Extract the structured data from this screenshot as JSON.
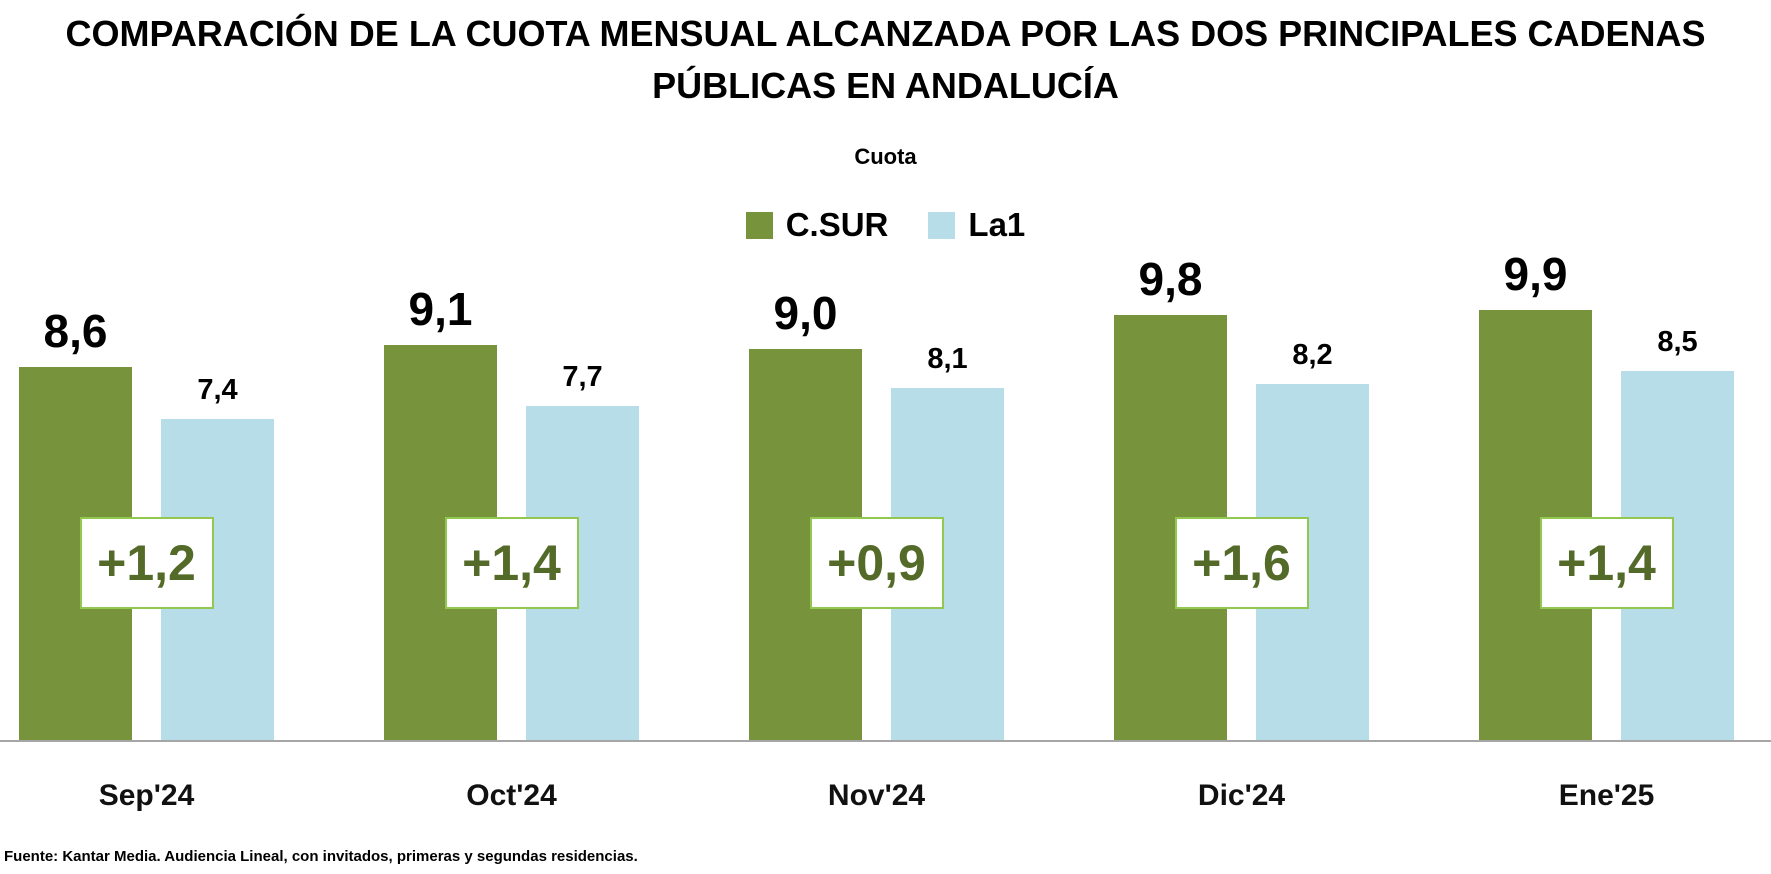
{
  "title": {
    "lines": [
      "COMPARACIÓN DE LA CUOTA MENSUAL ALCANZADA POR LAS DOS PRINCIPALES CADENAS",
      "PÚBLICAS EN ANDALUCÍA"
    ]
  },
  "legend": {
    "title": "Cuota",
    "series": [
      {
        "name": "C.SUR",
        "color": "#77933C"
      },
      {
        "name": "La1",
        "color": "#B7DEE8"
      }
    ]
  },
  "footer": {
    "source": "Fuente: Kantar Media. Audiencia Lineal, con invitados, primeras y segundas residencias."
  },
  "colors": {
    "axis_line": "#A6A6A6"
  },
  "chart_data": {
    "type": "bar",
    "title": "Cuota",
    "categories": [
      "Sep'24",
      "Oct'24",
      "Nov'24",
      "Dic'24",
      "Ene'25"
    ],
    "series": [
      {
        "name": "C.SUR",
        "color": "#77933C",
        "values": [
          8.6,
          9.1,
          9.0,
          9.8,
          9.9
        ],
        "labels": [
          "8,6",
          "9,1",
          "9,0",
          "9,8",
          "9,9"
        ]
      },
      {
        "name": "La1",
        "color": "#B7DEE8",
        "values": [
          7.4,
          7.7,
          8.1,
          8.2,
          8.5
        ],
        "labels": [
          "7,4",
          "7,7",
          "8,1",
          "8,2",
          "8,5"
        ]
      }
    ],
    "differences": {
      "values": [
        1.2,
        1.4,
        0.9,
        1.6,
        1.4
      ],
      "labels": [
        "+1,2",
        "+1,4",
        "+0,9",
        "+1,6",
        "+1,4"
      ],
      "box_border_color": "#92C850",
      "text_color": "#546A28"
    },
    "xlabel": "",
    "ylabel": "",
    "ylim": [
      0,
      10.5
    ],
    "grid": false,
    "legend_position": "top-center",
    "value_labels": true
  }
}
